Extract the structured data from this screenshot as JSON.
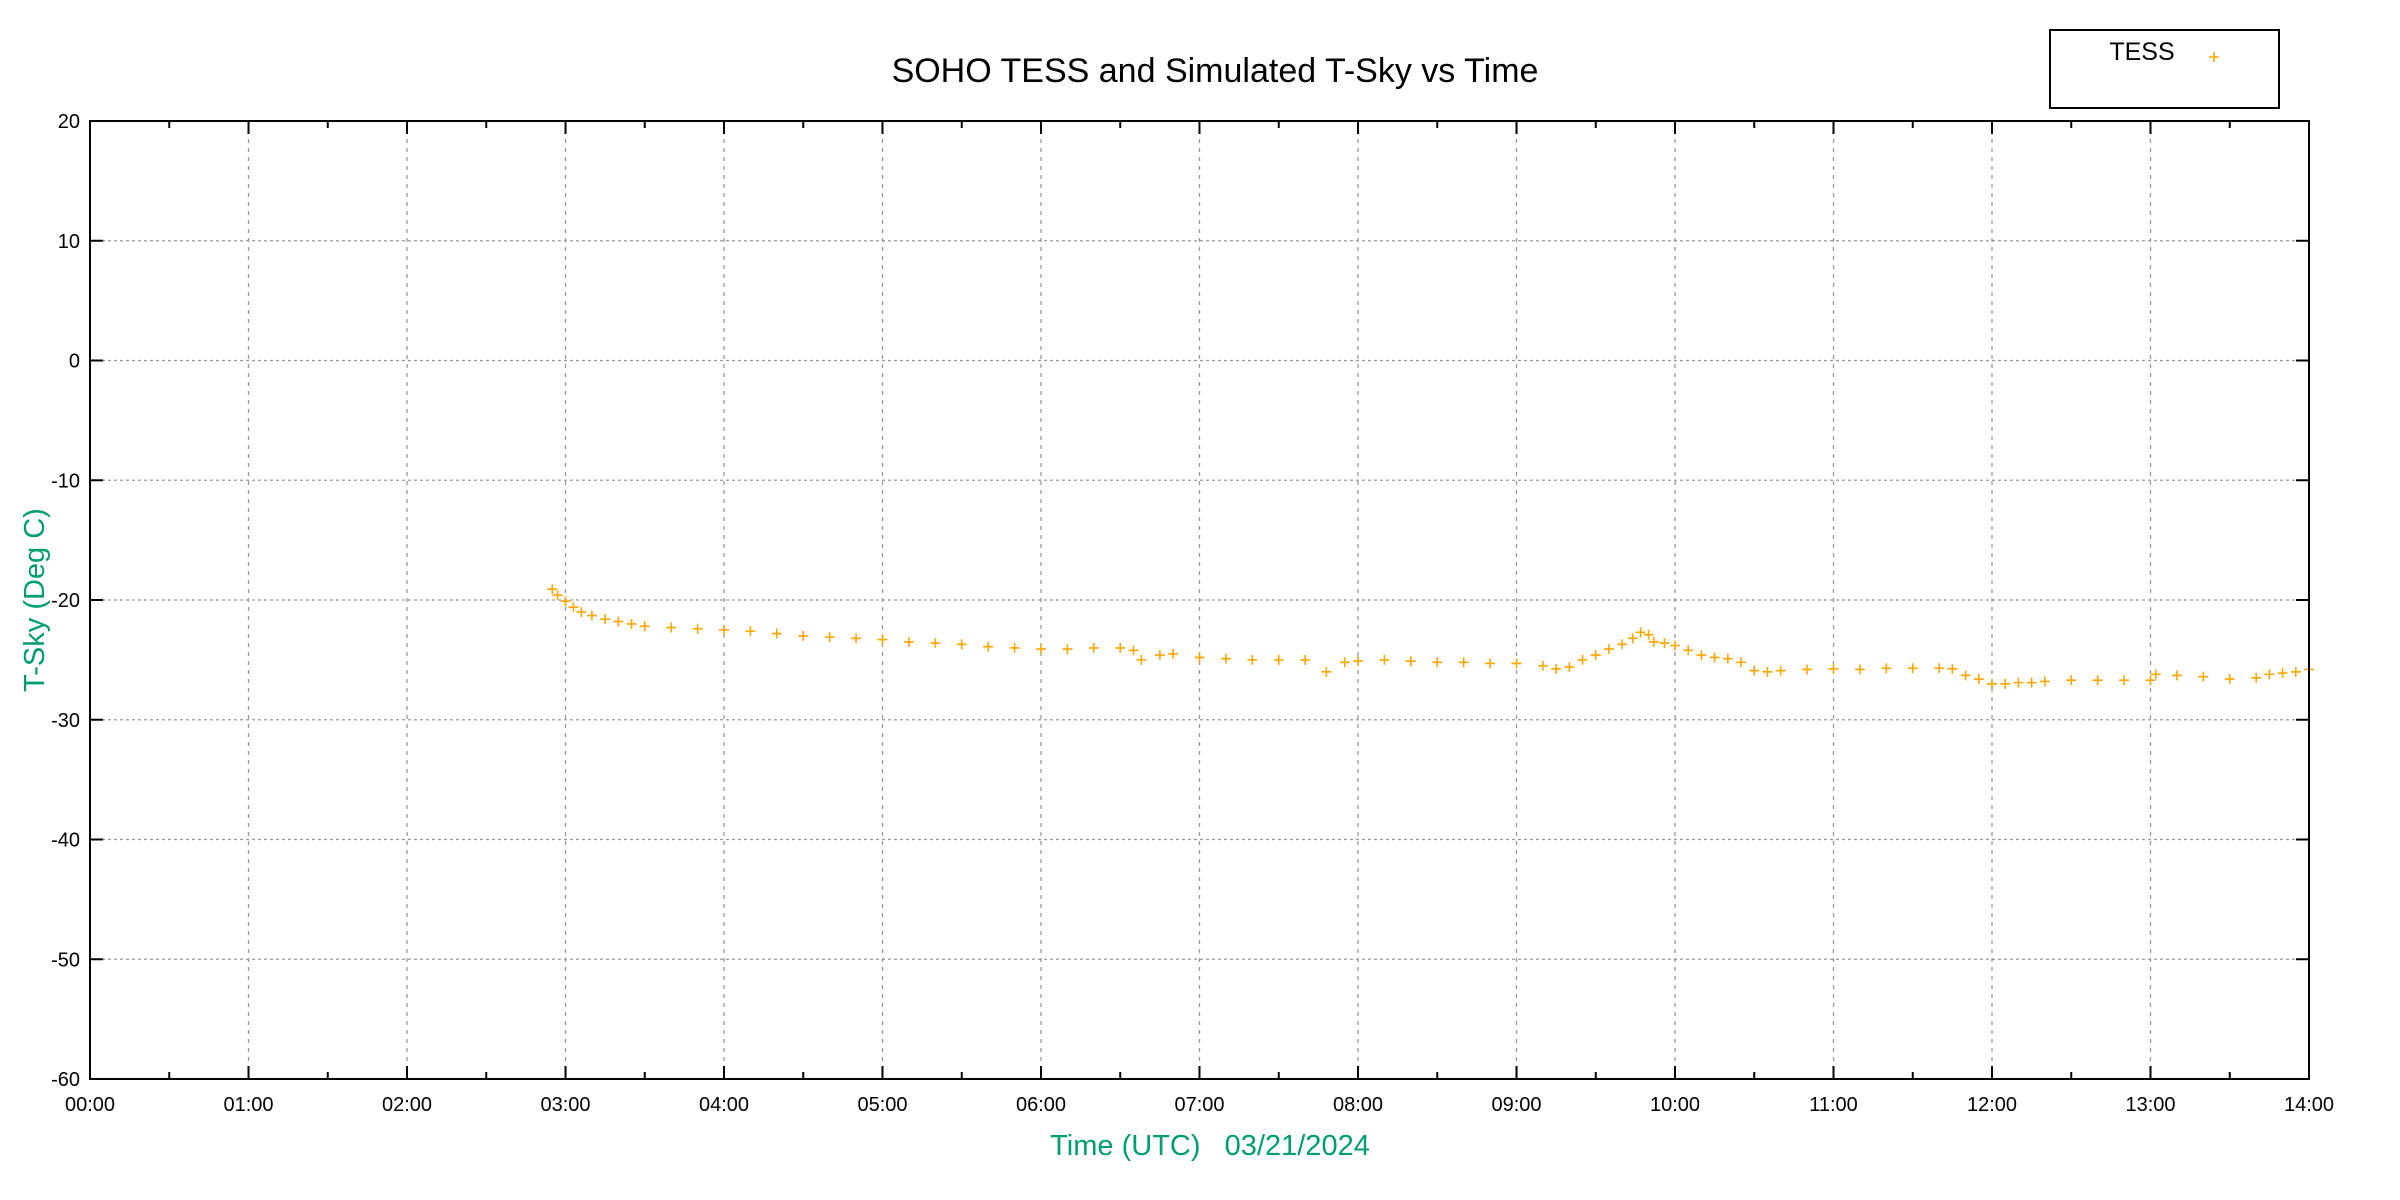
{
  "chart_data": {
    "type": "scatter",
    "title": "SOHO TESS and Simulated T-Sky vs Time",
    "xlabel": "Time (UTC)   03/21/2024",
    "ylabel": "T-Sky (Deg C)",
    "xlim": [
      "00:00",
      "14:00"
    ],
    "ylim": [
      -60,
      20
    ],
    "x_ticks": [
      "00:00",
      "01:00",
      "02:00",
      "03:00",
      "04:00",
      "05:00",
      "06:00",
      "07:00",
      "08:00",
      "09:00",
      "10:00",
      "11:00",
      "12:00",
      "13:00",
      "14:00"
    ],
    "y_ticks": [
      20,
      10,
      0,
      -10,
      -20,
      -30,
      -40,
      -50,
      -60
    ],
    "grid": true,
    "legend_position": "top-right",
    "series": [
      {
        "name": "TESS",
        "color": "#ffa500",
        "marker": "plus",
        "x": [
          "02:55",
          "02:57",
          "03:00",
          "03:03",
          "03:06",
          "03:10",
          "03:15",
          "03:20",
          "03:25",
          "03:30",
          "03:40",
          "03:50",
          "04:00",
          "04:10",
          "04:20",
          "04:30",
          "04:40",
          "04:50",
          "05:00",
          "05:10",
          "05:20",
          "05:30",
          "05:40",
          "05:50",
          "06:00",
          "06:10",
          "06:20",
          "06:30",
          "06:35",
          "06:38",
          "06:45",
          "06:50",
          "07:00",
          "07:10",
          "07:20",
          "07:30",
          "07:40",
          "07:48",
          "07:55",
          "08:00",
          "08:10",
          "08:20",
          "08:30",
          "08:40",
          "08:50",
          "09:00",
          "09:10",
          "09:15",
          "09:20",
          "09:25",
          "09:30",
          "09:35",
          "09:40",
          "09:44",
          "09:47",
          "09:50",
          "09:52",
          "09:56",
          "10:00",
          "10:05",
          "10:10",
          "10:15",
          "10:20",
          "10:25",
          "10:30",
          "10:35",
          "10:40",
          "10:50",
          "11:00",
          "11:10",
          "11:20",
          "11:30",
          "11:40",
          "11:45",
          "11:50",
          "11:55",
          "12:00",
          "12:05",
          "12:10",
          "12:15",
          "12:20",
          "12:30",
          "12:40",
          "12:50",
          "13:00",
          "13:02",
          "13:10",
          "13:20",
          "13:30",
          "13:40",
          "13:45",
          "13:50",
          "13:55",
          "14:00"
        ],
        "y": [
          -19.1,
          -19.6,
          -20.1,
          -20.6,
          -21.0,
          -21.3,
          -21.6,
          -21.8,
          -22.0,
          -22.2,
          -22.3,
          -22.4,
          -22.5,
          -22.6,
          -22.8,
          -23.0,
          -23.1,
          -23.2,
          -23.3,
          -23.5,
          -23.6,
          -23.7,
          -23.9,
          -24.0,
          -24.1,
          -24.1,
          -24.0,
          -24.0,
          -24.2,
          -25.0,
          -24.6,
          -24.5,
          -24.8,
          -24.9,
          -25.0,
          -25.0,
          -25.0,
          -26.0,
          -25.2,
          -25.1,
          -25.0,
          -25.1,
          -25.2,
          -25.2,
          -25.3,
          -25.3,
          -25.5,
          -25.75,
          -25.6,
          -25.0,
          -24.6,
          -24.1,
          -23.7,
          -23.2,
          -22.7,
          -22.9,
          -23.5,
          -23.6,
          -23.8,
          -24.2,
          -24.6,
          -24.8,
          -24.9,
          -25.2,
          -25.9,
          -26.0,
          -25.9,
          -25.8,
          -25.75,
          -25.8,
          -25.7,
          -25.7,
          -25.7,
          -25.75,
          -26.3,
          -26.6,
          -27.0,
          -27.0,
          -26.9,
          -26.9,
          -26.8,
          -26.7,
          -26.7,
          -26.7,
          -26.7,
          -26.2,
          -26.3,
          -26.4,
          -26.6,
          -26.5,
          -26.2,
          -26.1,
          -26.0,
          -25.8
        ]
      }
    ]
  }
}
